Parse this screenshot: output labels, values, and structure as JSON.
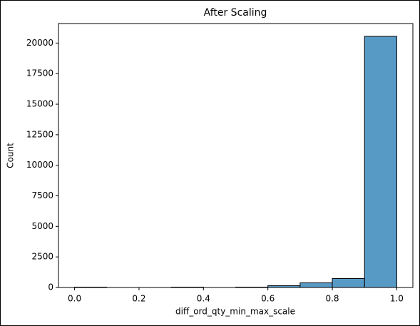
{
  "chart_data": {
    "type": "histogram",
    "title": "After Scaling",
    "x_label": "diff_ord_qty_min_max_scale",
    "y_label": "Count",
    "bins": [
      0.0,
      0.1,
      0.2,
      0.3,
      0.4,
      0.5,
      0.6,
      0.7,
      0.8,
      0.9,
      1.0
    ],
    "counts": [
      30,
      0,
      0,
      30,
      0,
      30,
      150,
      380,
      730,
      20550
    ],
    "color": "#579ac6",
    "edgecolor": "#000000",
    "xlim": [
      -0.05,
      1.05
    ],
    "ylim": [
      0,
      21600
    ],
    "xticks": [
      {
        "value": 0,
        "label": "0.0"
      },
      0.2,
      0.4,
      0.6,
      0.8,
      {
        "value": 1,
        "label": "1.0"
      }
    ],
    "yticks": [
      0,
      2500,
      5000,
      7500,
      10000,
      12500,
      15000,
      17500,
      20000
    ]
  }
}
